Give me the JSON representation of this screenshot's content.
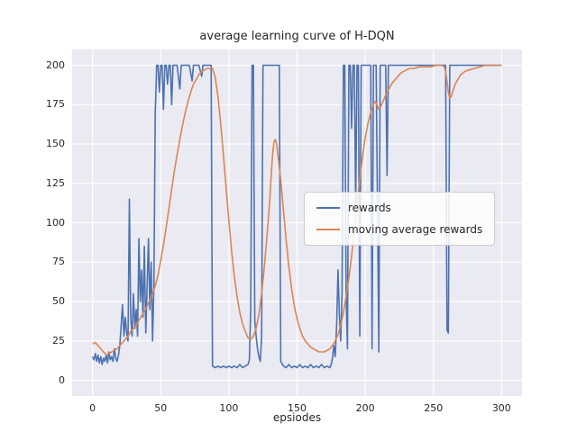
{
  "figure": {
    "title": "average learning curve of H-DQN",
    "xlabel": "epsiodes"
  },
  "chart_data": {
    "type": "line",
    "title": "average learning curve of H-DQN",
    "xlabel": "epsiodes",
    "ylabel": "",
    "xlim": [
      -15,
      315
    ],
    "ylim": [
      -10,
      210
    ],
    "xticks": [
      0,
      50,
      100,
      150,
      200,
      250,
      300
    ],
    "yticks": [
      0,
      25,
      50,
      75,
      100,
      125,
      150,
      175,
      200
    ],
    "grid": true,
    "grid_color": "#ffffff",
    "plot_background": "#eaeaf2",
    "legend_position": "center-right",
    "series": [
      {
        "name": "rewards",
        "color": "#4c72b0",
        "x": [
          0,
          1,
          2,
          3,
          4,
          5,
          6,
          7,
          8,
          9,
          10,
          11,
          12,
          13,
          14,
          15,
          16,
          17,
          18,
          19,
          20,
          21,
          22,
          23,
          24,
          25,
          26,
          27,
          28,
          29,
          30,
          31,
          32,
          33,
          34,
          35,
          36,
          37,
          38,
          39,
          40,
          41,
          42,
          43,
          44,
          45,
          46,
          47,
          48,
          49,
          50,
          51,
          52,
          53,
          54,
          55,
          56,
          57,
          58,
          59,
          60,
          62,
          64,
          65,
          67,
          69,
          71,
          73,
          74,
          76,
          78,
          80,
          81,
          83,
          85,
          87,
          88,
          90,
          92,
          94,
          96,
          98,
          100,
          102,
          104,
          106,
          108,
          110,
          112,
          114,
          115,
          116,
          117,
          118,
          119,
          120,
          121,
          122,
          123,
          124,
          125,
          126,
          128,
          130,
          132,
          134,
          136,
          137,
          138,
          140,
          142,
          144,
          146,
          148,
          150,
          152,
          154,
          156,
          158,
          160,
          162,
          164,
          166,
          168,
          170,
          172,
          174,
          175,
          176,
          177,
          178,
          179,
          180,
          181,
          182,
          183,
          184,
          185,
          186,
          187,
          188,
          189,
          190,
          191,
          192,
          193,
          194,
          195,
          196,
          197,
          198,
          200,
          202,
          204,
          205,
          206,
          208,
          210,
          211,
          213,
          215,
          216,
          217,
          219,
          221,
          224,
          228,
          232,
          236,
          240,
          244,
          248,
          252,
          256,
          258,
          259,
          260,
          261,
          262,
          264,
          268,
          272,
          276,
          280,
          284,
          288,
          292,
          296,
          300
        ],
        "y": [
          15,
          13,
          17,
          12,
          16,
          11,
          15,
          10,
          14,
          12,
          16,
          11,
          18,
          13,
          15,
          12,
          20,
          14,
          12,
          16,
          22,
          35,
          48,
          28,
          40,
          30,
          25,
          115,
          40,
          28,
          55,
          33,
          45,
          28,
          90,
          50,
          70,
          40,
          85,
          30,
          60,
          90,
          45,
          75,
          25,
          60,
          170,
          200,
          200,
          183,
          200,
          200,
          172,
          200,
          200,
          188,
          200,
          200,
          175,
          200,
          200,
          200,
          185,
          200,
          200,
          200,
          200,
          190,
          200,
          200,
          200,
          193,
          200,
          200,
          200,
          200,
          9,
          8,
          9,
          8,
          9,
          8,
          9,
          8,
          9,
          8,
          10,
          8,
          9,
          10,
          13,
          45,
          200,
          200,
          38,
          28,
          20,
          15,
          12,
          28,
          200,
          200,
          200,
          200,
          200,
          200,
          200,
          200,
          12,
          9,
          8,
          10,
          8,
          9,
          8,
          10,
          8,
          9,
          8,
          10,
          8,
          9,
          8,
          10,
          8,
          9,
          8,
          10,
          14,
          22,
          15,
          35,
          70,
          42,
          25,
          55,
          200,
          200,
          55,
          20,
          200,
          200,
          160,
          200,
          200,
          110,
          200,
          200,
          28,
          200,
          200,
          200,
          200,
          200,
          20,
          200,
          200,
          18,
          200,
          200,
          200,
          130,
          200,
          200,
          200,
          200,
          200,
          200,
          200,
          200,
          200,
          200,
          200,
          200,
          200,
          200,
          32,
          30,
          200,
          200,
          200,
          200,
          200,
          200,
          200,
          200,
          200,
          200,
          200
        ]
      },
      {
        "name": "moving average rewards",
        "color": "#dd8452",
        "x": [
          0,
          2,
          4,
          6,
          8,
          10,
          12,
          14,
          16,
          18,
          20,
          22,
          24,
          26,
          28,
          30,
          32,
          34,
          36,
          38,
          40,
          42,
          44,
          46,
          48,
          50,
          52,
          54,
          56,
          58,
          60,
          62,
          64,
          66,
          68,
          70,
          72,
          74,
          76,
          78,
          80,
          82,
          84,
          86,
          88,
          90,
          92,
          94,
          96,
          98,
          100,
          102,
          104,
          106,
          108,
          110,
          112,
          114,
          116,
          118,
          120,
          122,
          124,
          126,
          128,
          130,
          131,
          132,
          133,
          134,
          135,
          136,
          138,
          140,
          142,
          144,
          146,
          148,
          150,
          152,
          154,
          156,
          158,
          160,
          162,
          164,
          166,
          168,
          170,
          172,
          174,
          176,
          178,
          180,
          182,
          184,
          186,
          188,
          190,
          192,
          194,
          196,
          198,
          200,
          202,
          204,
          206,
          207,
          208,
          209,
          210,
          211,
          212,
          214,
          216,
          218,
          220,
          222,
          224,
          226,
          228,
          230,
          233,
          236,
          240,
          244,
          248,
          252,
          256,
          258,
          259,
          260,
          261,
          262,
          263,
          264,
          266,
          268,
          270,
          273,
          276,
          280,
          284,
          288,
          292,
          296,
          300
        ],
        "y": [
          23,
          24,
          22,
          20,
          18,
          16,
          17,
          18,
          19,
          20,
          22,
          24,
          26,
          28,
          31,
          33,
          35,
          38,
          41,
          44,
          47,
          51,
          55,
          60,
          67,
          76,
          86,
          97,
          109,
          121,
          133,
          143,
          153,
          162,
          170,
          177,
          183,
          188,
          191,
          194,
          196,
          197,
          198,
          198,
          198,
          192,
          180,
          163,
          143,
          122,
          101,
          82,
          66,
          53,
          43,
          36,
          31,
          27,
          26,
          28,
          33,
          42,
          55,
          72,
          92,
          115,
          130,
          143,
          151,
          153,
          150,
          143,
          127,
          108,
          89,
          72,
          58,
          47,
          39,
          33,
          28,
          25,
          23,
          21,
          20,
          19,
          18,
          18,
          18,
          19,
          20,
          22,
          25,
          29,
          35,
          43,
          53,
          65,
          79,
          95,
          112,
          128,
          142,
          154,
          163,
          170,
          175,
          177,
          176,
          174,
          172,
          173,
          175,
          179,
          183,
          186,
          189,
          191,
          193,
          195,
          196,
          197,
          198,
          198,
          199,
          199,
          199,
          200,
          200,
          199,
          196,
          190,
          183,
          179,
          180,
          183,
          188,
          191,
          194,
          196,
          197,
          198,
          199,
          200,
          200,
          200,
          200
        ]
      }
    ]
  }
}
